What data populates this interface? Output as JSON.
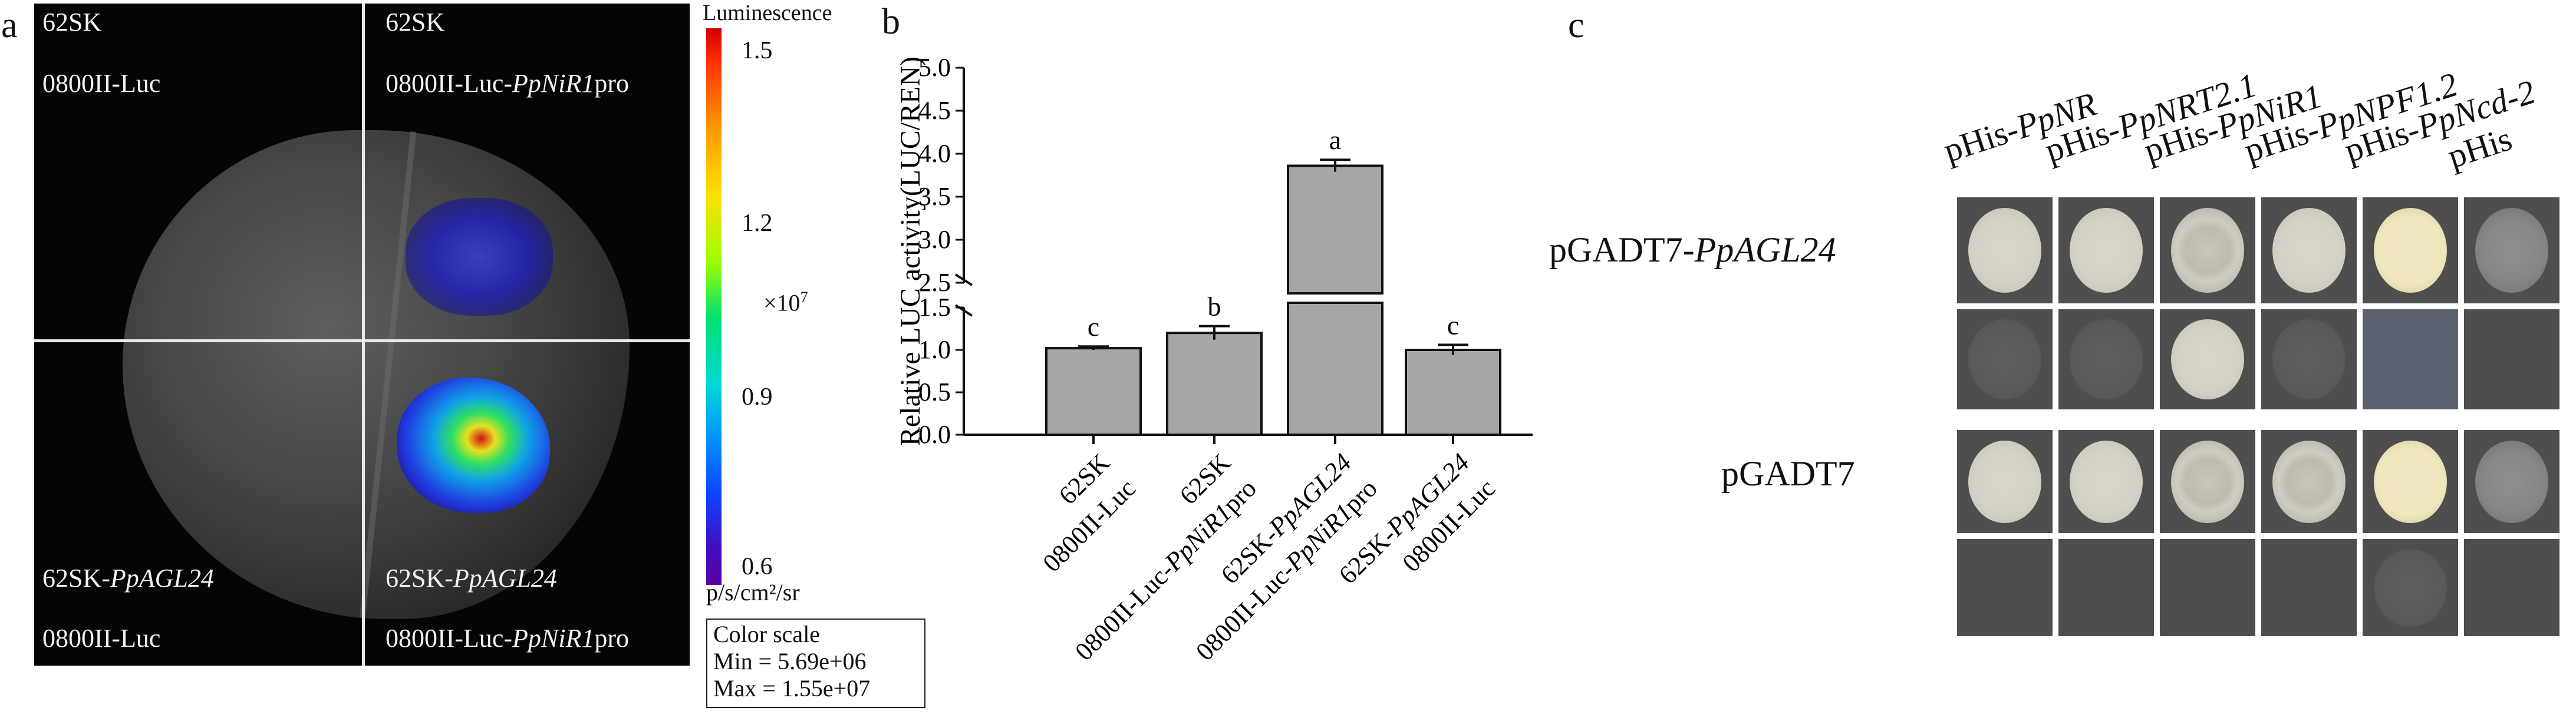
{
  "panel_a": {
    "letter": "a",
    "labels": {
      "top_left_line1": "62SK",
      "top_left_line2": "0800II-Luc",
      "top_right_line1": "62SK",
      "top_right_line2_prefix": "0800II-Luc-",
      "top_right_line2_gene": "PpNiR1",
      "top_right_line2_suffix": "pro",
      "bottom_left_line1_prefix": "62SK-",
      "bottom_left_line1_gene": "PpAGL24",
      "bottom_left_line2": "0800II-Luc",
      "bottom_right_line1_prefix": "62SK-",
      "bottom_right_line1_gene": "PpAGL24",
      "bottom_right_line2_prefix": "0800II-Luc-",
      "bottom_right_line2_gene": "PpNiR1",
      "bottom_right_line2_suffix": "pro"
    },
    "colorbar": {
      "title": "Luminescence",
      "ticks": [
        "1.5",
        "1.2",
        "0.9",
        "0.6"
      ],
      "multiplier": "×10",
      "multiplier_exp": "7",
      "unit": "p/s/cm²/sr"
    },
    "scale_box": {
      "title": "Color scale",
      "min": "Min  = 5.69e+06",
      "max": "Max = 1.55e+07"
    }
  },
  "panel_b": {
    "letter": "b"
  },
  "chart_data": {
    "type": "bar",
    "ylabel": "Relative LUC activity(LUC/REN)",
    "ylim": [
      0,
      5.0
    ],
    "axis_break": [
      1.5,
      2.5
    ],
    "yticks": [
      "0.0",
      "0.5",
      "1.0",
      "1.5",
      "2.5",
      "3.0",
      "3.5",
      "4.0",
      "4.5",
      "5.0"
    ],
    "categories": [
      {
        "line1": "62SK",
        "line2": "0800II-Luc",
        "line2_gene": "",
        "line2_suffix": ""
      },
      {
        "line1": "62SK",
        "line2": "0800II-Luc-",
        "line2_gene": "PpNiR1",
        "line2_suffix": "pro"
      },
      {
        "line1": "62SK-",
        "line1_gene": "PpAGL24",
        "line2": "0800II-Luc-",
        "line2_gene": "PpNiR1",
        "line2_suffix": "pro"
      },
      {
        "line1": "62SK-",
        "line1_gene": "PpAGL24",
        "line2": "0800II-Luc",
        "line2_gene": "",
        "line2_suffix": ""
      }
    ],
    "values": [
      1.02,
      1.2,
      3.86,
      1.0
    ],
    "errors": [
      0.02,
      0.08,
      0.07,
      0.06
    ],
    "significance": [
      "c",
      "b",
      "a",
      "c"
    ],
    "bar_color": "#a6a6a8",
    "grid": false
  },
  "panel_c": {
    "letter": "c",
    "columns": [
      {
        "prefix": "pHis-",
        "gene": "PpNR"
      },
      {
        "prefix": "pHis-",
        "gene": "PpNRT2.1"
      },
      {
        "prefix": "pHis-",
        "gene": "PpNiR1"
      },
      {
        "prefix": "pHis-",
        "gene": "PpNPF1.2"
      },
      {
        "prefix": "pHis-",
        "gene": "PpNcd-2"
      },
      {
        "prefix": "pHis",
        "gene": ""
      }
    ],
    "rows": [
      {
        "prefix": "pGADT7-",
        "gene": "PpAGL24"
      },
      {
        "prefix": "pGADT7",
        "gene": ""
      }
    ],
    "growth": [
      [
        "strong",
        "strong",
        "grainy",
        "strong",
        "cream",
        "pale"
      ],
      [
        "faint",
        "faint",
        "strong",
        "faint",
        "bluish",
        "none"
      ],
      [
        "strong",
        "strong",
        "grainy",
        "grainy",
        "cream",
        "pale"
      ],
      [
        "none",
        "none",
        "none",
        "none",
        "faint",
        "none"
      ]
    ]
  }
}
